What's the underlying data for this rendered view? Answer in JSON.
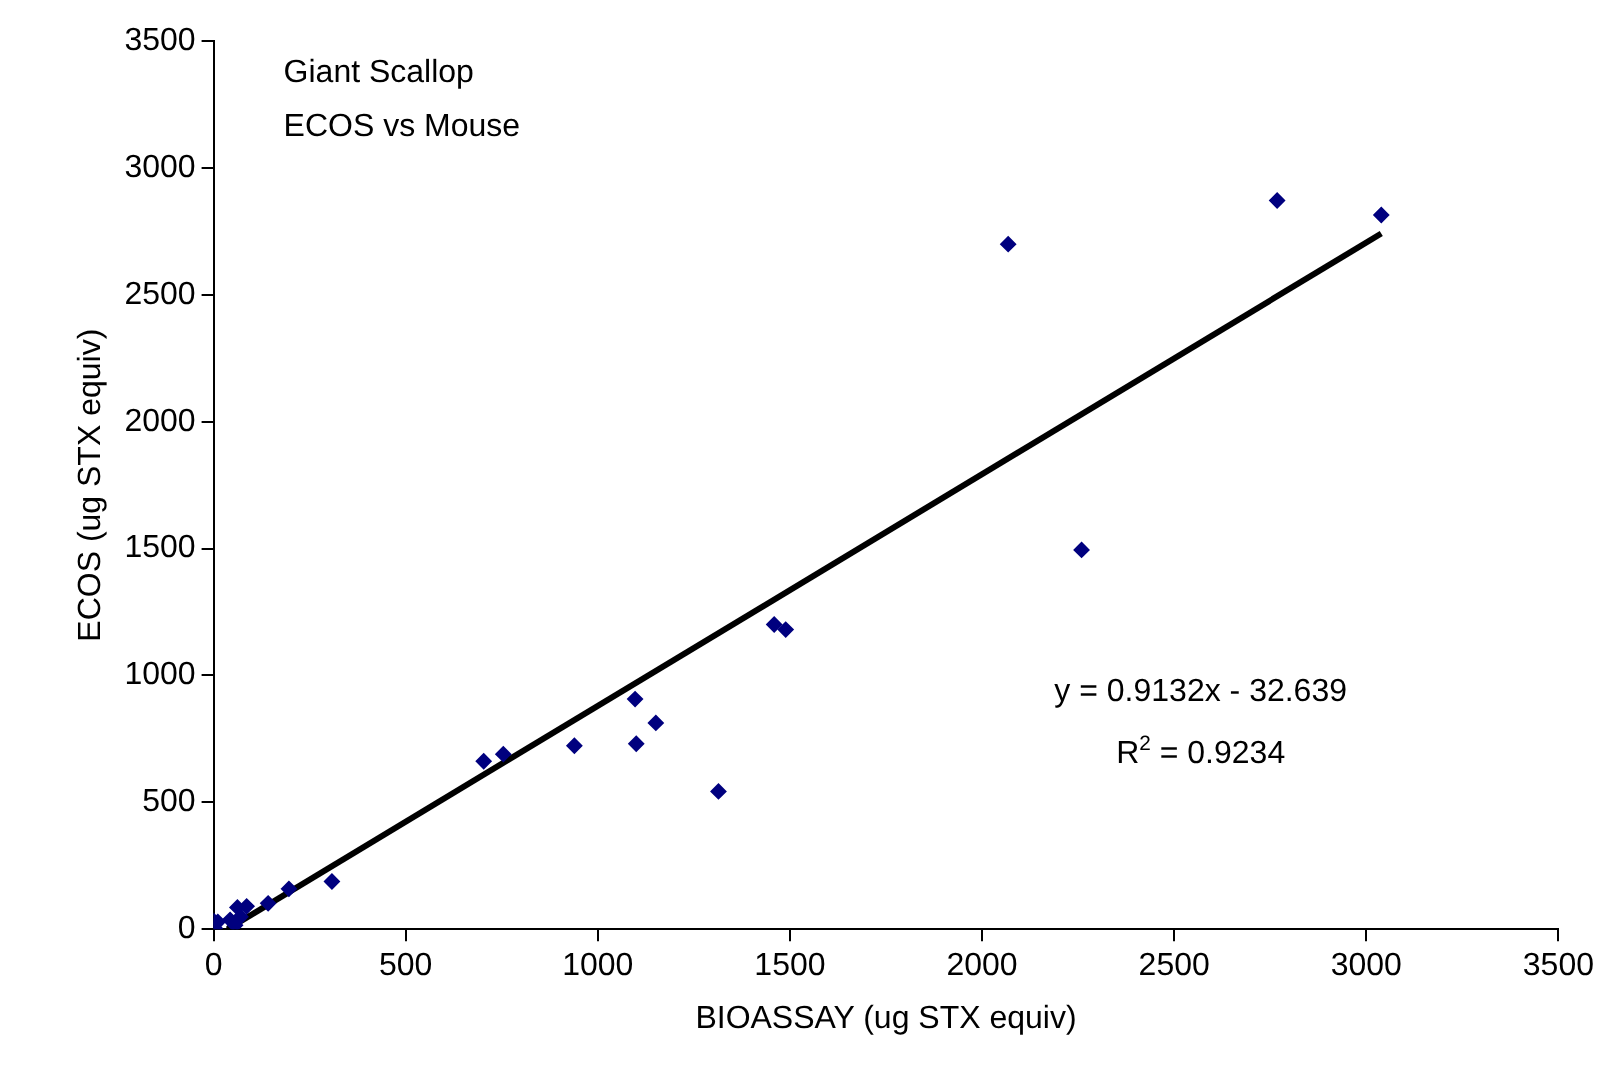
{
  "chart_data": {
    "type": "scatter",
    "title": "Giant Scallop",
    "subtitle": "ECOS vs Mouse",
    "xlabel": "BIOASSAY (ug STX equiv)",
    "ylabel": "ECOS (ug STX equiv)",
    "xlim": [
      0,
      3500
    ],
    "xticks": [
      0,
      500,
      1000,
      1500,
      2000,
      2500,
      3000,
      3500
    ],
    "ylim": [
      0,
      3500
    ],
    "yticks": [
      0,
      500,
      1000,
      1500,
      2000,
      2500,
      3000,
      3500
    ],
    "grid": false,
    "legend": false,
    "marker": "diamond",
    "annotations": [
      "y = 0.9132x - 32.639",
      "R$^{2}$ = 0.9234"
    ],
    "series": [
      {
        "color": "#00007f",
        "x": [
          2068,
          2768,
          3039,
          2259,
          1459,
          1489,
          1097,
          1151,
          1100,
          939,
          703,
          754,
          1314,
          308,
          196,
          142,
          86,
          62,
          70,
          43,
          11,
          0,
          3,
          56
        ],
        "values": [
          2700,
          2872,
          2815,
          1495,
          1201,
          1181,
          907,
          813,
          731,
          723,
          662,
          690,
          543,
          188,
          159,
          102,
          90,
          86,
          49,
          37,
          29,
          33,
          4,
          16
        ]
      },
      {
        "type": "line",
        "color": "#000000",
        "marker": "none",
        "x": [
          36,
          3039
        ],
        "values": [
          0,
          2742
        ]
      }
    ]
  }
}
